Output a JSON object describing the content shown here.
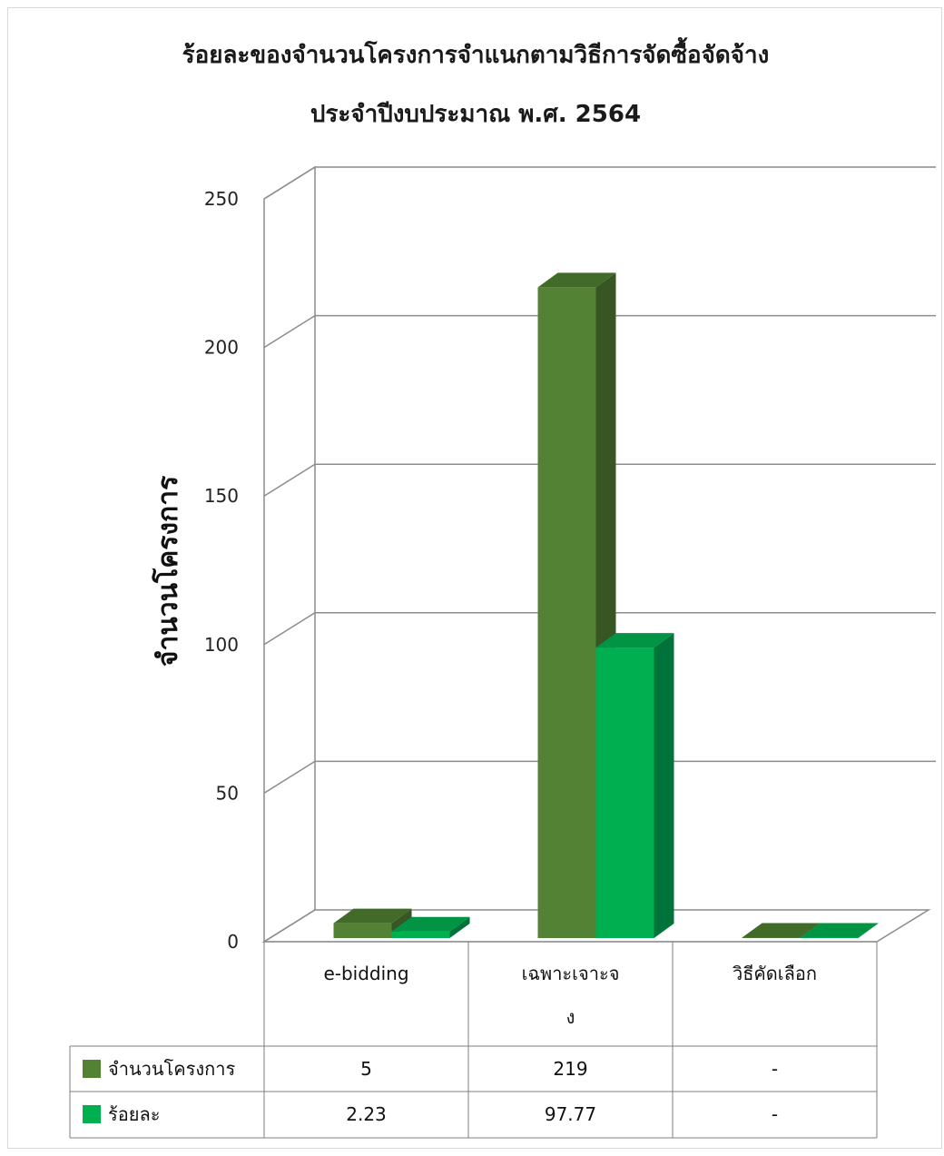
{
  "chart_data": {
    "type": "bar",
    "title_lines": [
      "ร้อยละของจำนวนโครงการจำแนกตามวิธีการจัดซื้อจัดจ้าง",
      "ประจำปีงบประมาณ พ.ศ. 2564"
    ],
    "ylabel": "จำนวนโครงการ",
    "ylim": [
      0,
      250
    ],
    "yticks": [
      0,
      50,
      100,
      150,
      200,
      250
    ],
    "categories": [
      "e-bidding",
      "เฉพาะเจาะจง",
      "วิธีคัดเลือก"
    ],
    "category_label_lines": [
      [
        "e-bidding"
      ],
      [
        "เฉพาะเจาะจ",
        "ง"
      ],
      [
        "วิธีคัดเลือก"
      ]
    ],
    "series": [
      {
        "name": "จำนวนโครงการ",
        "values": [
          5,
          219,
          0
        ],
        "display": [
          "5",
          "219",
          "-"
        ],
        "color": "#548235",
        "side_color": "#375623",
        "top_color": "#426b2a"
      },
      {
        "name": "ร้อยละ",
        "values": [
          2.23,
          97.77,
          0
        ],
        "display": [
          "2.23",
          "97.77",
          "-"
        ],
        "color": "#00b050",
        "side_color": "#00733a",
        "top_color": "#009444"
      }
    ],
    "grid": true,
    "legend": "data-table"
  }
}
